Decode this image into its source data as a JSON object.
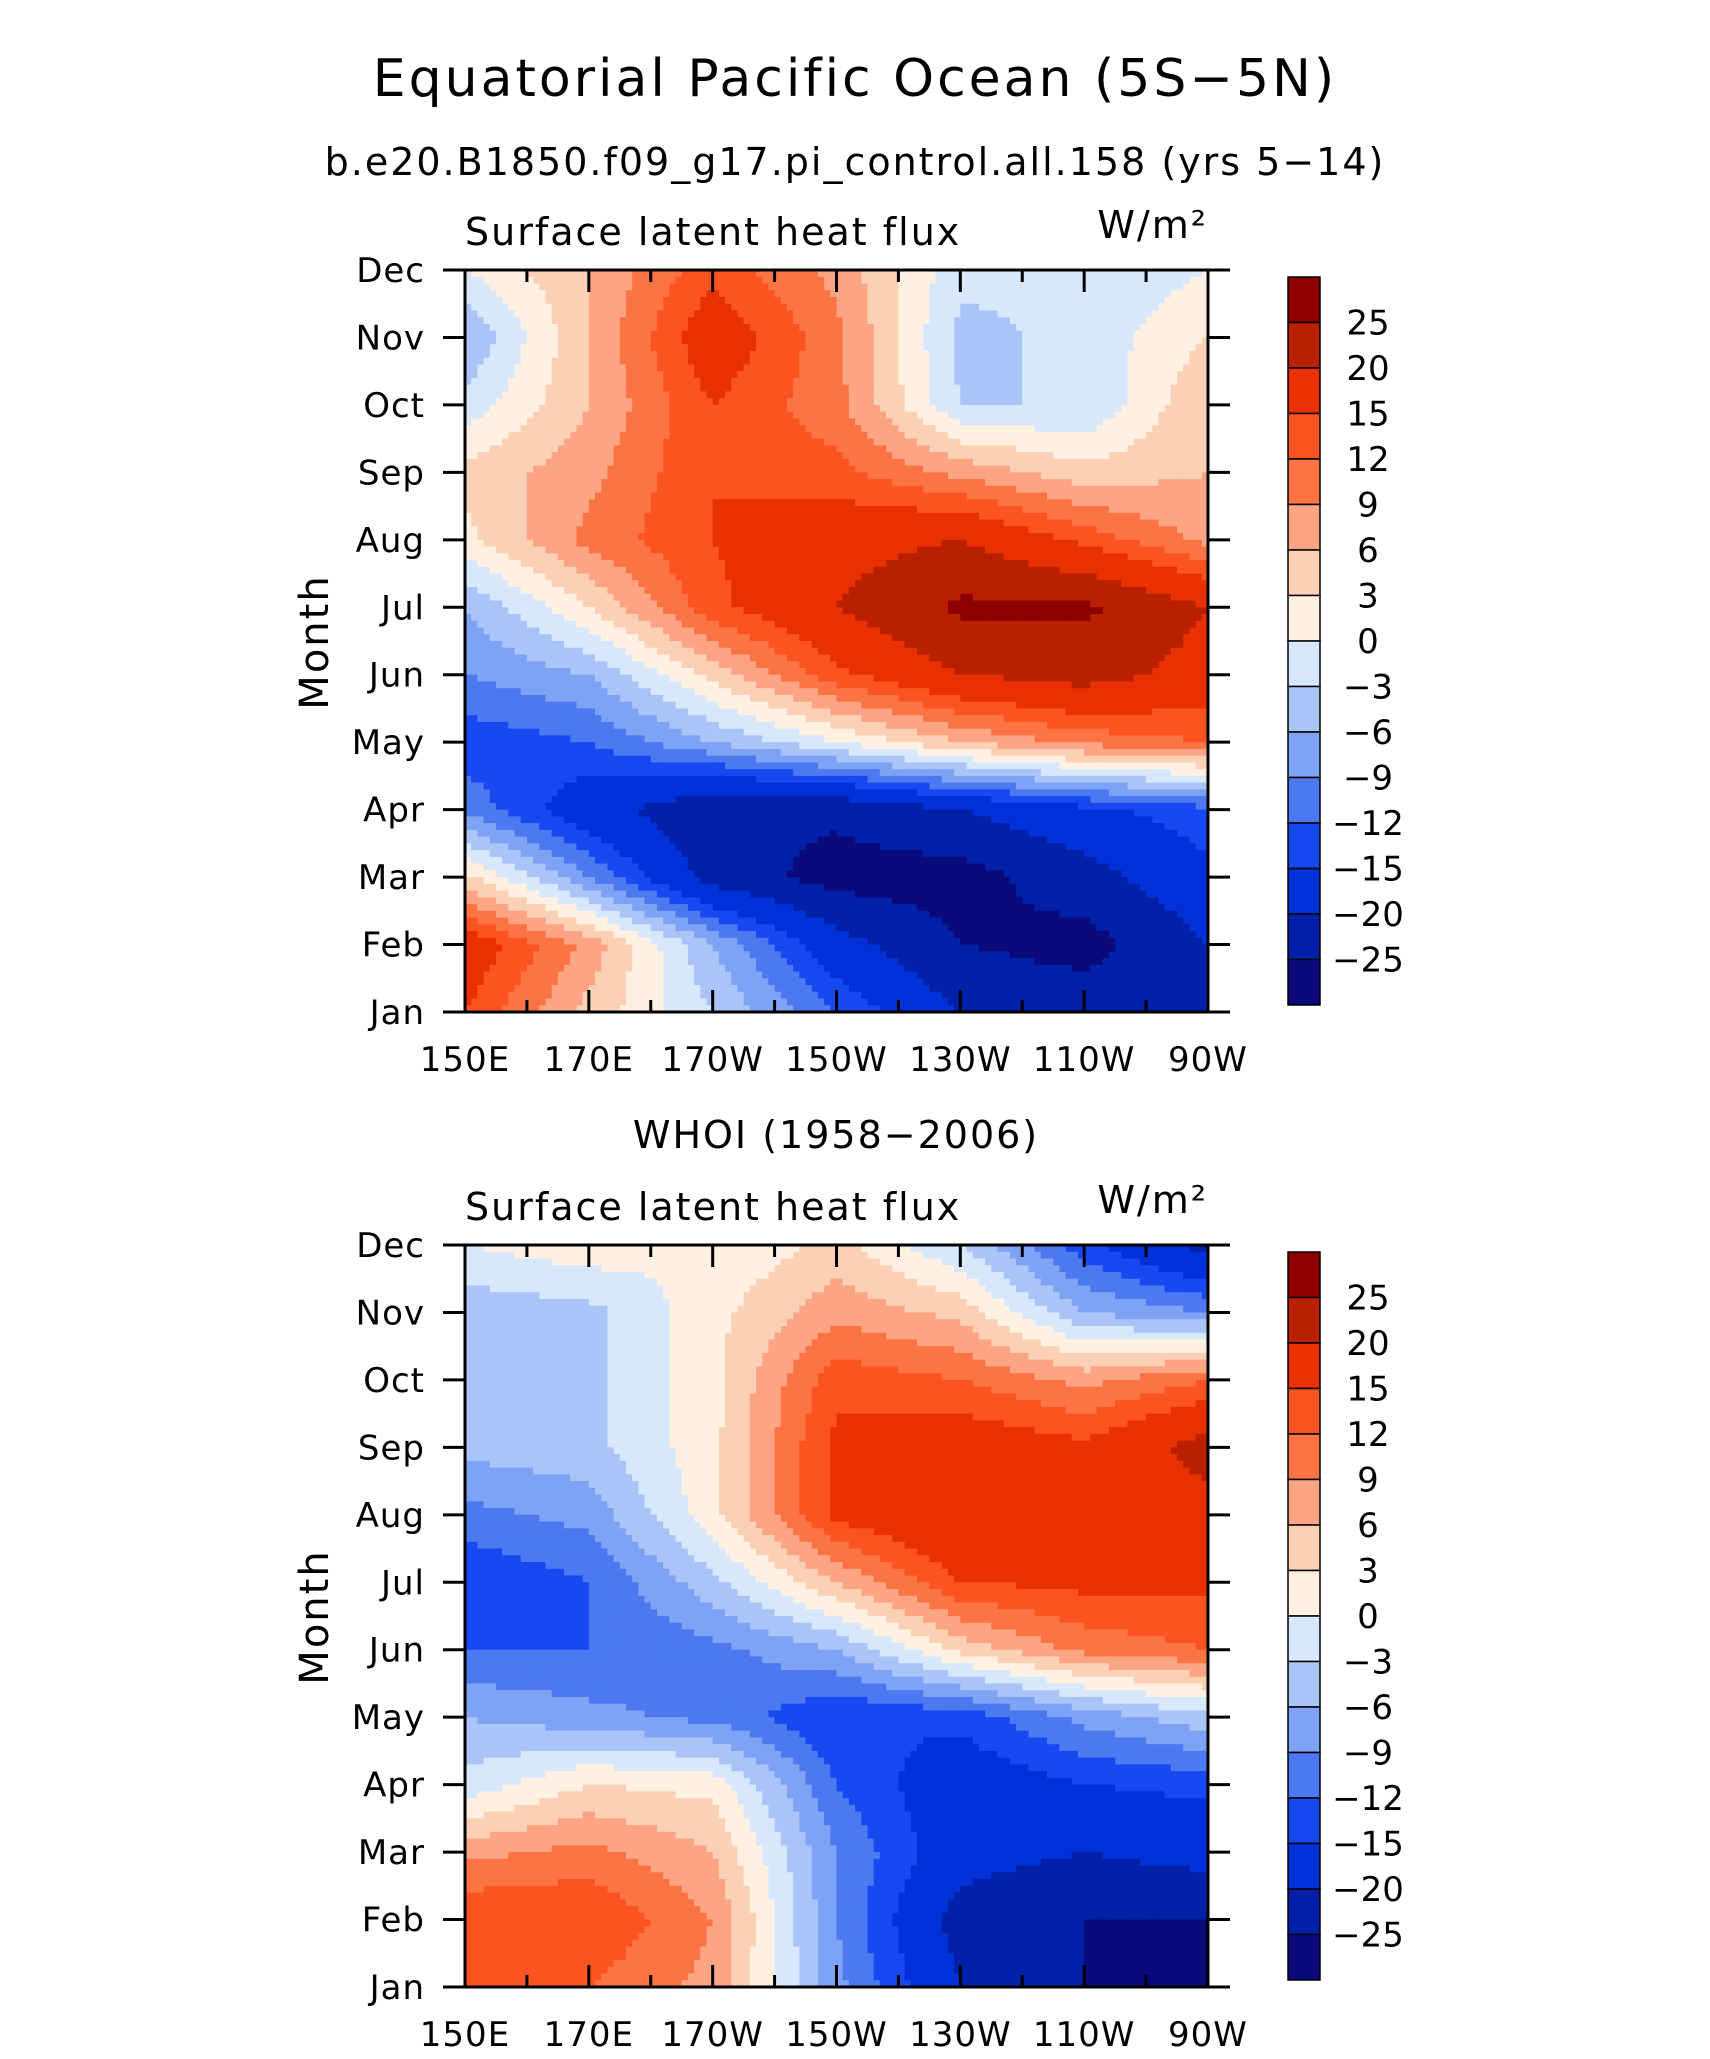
{
  "figure": {
    "title": "Equatorial Pacific Ocean (5S−5N)",
    "subtitle": "b.e20.B1850.f09_g17.pi_control.all.158 (yrs 5−14)"
  },
  "colorbar": {
    "labels": [
      "25",
      "20",
      "15",
      "12",
      "9",
      "6",
      "3",
      "0",
      "−3",
      "−6",
      "−9",
      "−12",
      "−15",
      "−20",
      "−25"
    ],
    "levels": [
      -25,
      -20,
      -15,
      -12,
      -9,
      -6,
      -3,
      0,
      3,
      6,
      9,
      12,
      15,
      20,
      25
    ],
    "colors": [
      "#0a0a7a",
      "#0020a8",
      "#0030d8",
      "#1848f0",
      "#4c78f0",
      "#7ea2f4",
      "#aac4f8",
      "#d8e8fc",
      "#fff0e2",
      "#fcd0b4",
      "#fca484",
      "#fc7444",
      "#fc5420",
      "#e83000",
      "#b82000",
      "#8c0000"
    ]
  },
  "chart_data": [
    {
      "type": "heatmap",
      "panel_title": "",
      "title": "Surface latent heat flux",
      "units": "W/m²",
      "ylabel": "Month",
      "x": [
        "150E",
        "170E",
        "170W",
        "150W",
        "130W",
        "110W",
        "90W"
      ],
      "x_values": [
        150,
        170,
        190,
        210,
        230,
        250,
        270
      ],
      "y": [
        "Jan",
        "Feb",
        "Mar",
        "Apr",
        "May",
        "Jun",
        "Jul",
        "Aug",
        "Sep",
        "Oct",
        "Nov",
        "Dec"
      ],
      "z": [
        [
          15,
          5,
          -3,
          -12,
          -20,
          -22,
          -20
        ],
        [
          18,
          8,
          -6,
          -18,
          -25,
          -27,
          -20
        ],
        [
          4,
          -9,
          -22,
          -27,
          -27,
          -22,
          -16
        ],
        [
          -10,
          -18,
          -24,
          -24,
          -20,
          -16,
          -13
        ],
        [
          -14,
          -12,
          -6,
          0,
          6,
          10,
          12
        ],
        [
          -9,
          -6,
          4,
          14,
          20,
          22,
          18
        ],
        [
          -6,
          3,
          14,
          20,
          26,
          26,
          20
        ],
        [
          2,
          10,
          15,
          18,
          20,
          14,
          8
        ],
        [
          4,
          8,
          15,
          13,
          8,
          4,
          6
        ],
        [
          -2,
          6,
          15,
          10,
          -3,
          -3,
          6
        ],
        [
          -6,
          6,
          18,
          10,
          -4,
          -2,
          3
        ],
        [
          0,
          6,
          14,
          8,
          -2,
          -3,
          0
        ]
      ]
    },
    {
      "type": "heatmap",
      "panel_title": "WHOI (1958−2006)",
      "title": "Surface latent heat flux",
      "units": "W/m²",
      "ylabel": "Month",
      "x": [
        "150E",
        "170E",
        "170W",
        "150W",
        "130W",
        "110W",
        "90W"
      ],
      "x_values": [
        150,
        170,
        190,
        210,
        230,
        250,
        270
      ],
      "y": [
        "Jan",
        "Feb",
        "Mar",
        "Apr",
        "May",
        "Jun",
        "Jul",
        "Aug",
        "Sep",
        "Oct",
        "Nov",
        "Dec"
      ],
      "z": [
        [
          12,
          12,
          8,
          -8,
          -20,
          -25,
          -27
        ],
        [
          15,
          15,
          9,
          -9,
          -22,
          -25,
          -25
        ],
        [
          8,
          10,
          6,
          -9,
          -18,
          -20,
          -18
        ],
        [
          -2,
          3,
          2,
          -12,
          -18,
          -15,
          -14
        ],
        [
          -6,
          -8,
          -10,
          -15,
          -14,
          -8,
          -4
        ],
        [
          -12,
          -12,
          -10,
          -6,
          4,
          10,
          12
        ],
        [
          -15,
          -12,
          -4,
          6,
          15,
          16,
          16
        ],
        [
          -10,
          -8,
          2,
          16,
          20,
          18,
          18
        ],
        [
          -5,
          -4,
          2,
          16,
          18,
          16,
          22
        ],
        [
          -3,
          -4,
          2,
          14,
          12,
          8,
          12
        ],
        [
          -5,
          -4,
          2,
          8,
          5,
          -6,
          -9
        ],
        [
          0,
          2,
          0,
          4,
          -3,
          -14,
          -22
        ]
      ]
    }
  ]
}
